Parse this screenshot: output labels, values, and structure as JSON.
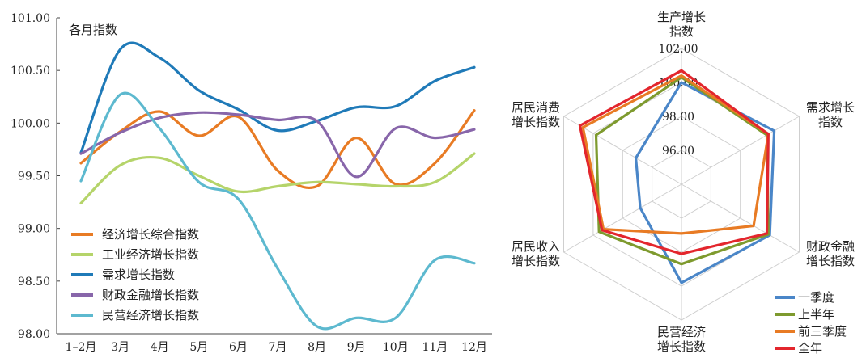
{
  "chart_data": [
    {
      "type": "line",
      "title": "各月指数",
      "categories": [
        "1–2月",
        "3月",
        "4月",
        "5月",
        "6月",
        "7月",
        "8月",
        "9月",
        "10月",
        "11月",
        "12月"
      ],
      "ylim": [
        98.0,
        101.0
      ],
      "yticks": [
        "98.00",
        "98.50",
        "99.00",
        "99.50",
        "100.00",
        "100.50",
        "101.00"
      ],
      "grid": false,
      "legend_position": "bottom-left",
      "series": [
        {
          "name": "经济增长综合指数",
          "color": "#E87B24",
          "values": [
            99.62,
            99.92,
            100.11,
            99.88,
            100.06,
            99.55,
            99.4,
            99.86,
            99.42,
            99.62,
            100.12
          ]
        },
        {
          "name": "工业经济增长指数",
          "color": "#B5D46A",
          "values": [
            99.24,
            99.6,
            99.67,
            99.5,
            99.35,
            99.4,
            99.44,
            99.42,
            99.4,
            99.44,
            99.71
          ]
        },
        {
          "name": "需求增长指数",
          "color": "#1F7AB8",
          "values": [
            99.72,
            100.7,
            100.62,
            100.31,
            100.13,
            99.93,
            100.02,
            100.15,
            100.16,
            100.4,
            100.53
          ]
        },
        {
          "name": "财政金融增长指数",
          "color": "#8866AA",
          "values": [
            99.71,
            99.91,
            100.05,
            100.1,
            100.08,
            100.03,
            100.02,
            99.49,
            99.95,
            99.86,
            99.94
          ]
        },
        {
          "name": "民营经济增长指数",
          "color": "#5DB9CF",
          "values": [
            99.45,
            100.27,
            99.95,
            99.44,
            99.28,
            98.62,
            98.07,
            98.15,
            98.15,
            98.7,
            98.67
          ]
        }
      ]
    },
    {
      "type": "radar",
      "axes": [
        "生产增长\n指数",
        "需求增长\n指数",
        "财政金融\n增长指数",
        "民营经济\n增长指数",
        "居民收入\n增长指数",
        "居民消费\n增长指数"
      ],
      "ticks": [
        "96.00",
        "98.00",
        "100.00",
        "102.00"
      ],
      "rlim": [
        94.0,
        102.0
      ],
      "legend_position": "bottom-right",
      "series": [
        {
          "name": "一季度",
          "color": "#4A86C8",
          "values": [
            100.0,
            100.3,
            100.0,
            99.8,
            96.8,
            97.1
          ]
        },
        {
          "name": "上半年",
          "color": "#7E9A2E",
          "values": [
            100.3,
            99.8,
            99.9,
            98.7,
            99.6,
            99.8
          ]
        },
        {
          "name": "前三季度",
          "color": "#E87B24",
          "values": [
            100.4,
            99.9,
            98.9,
            96.9,
            99.3,
            100.7
          ]
        },
        {
          "name": "全年",
          "color": "#E3262D",
          "values": [
            100.7,
            99.9,
            99.8,
            98.1,
            99.4,
            100.9
          ]
        }
      ]
    }
  ]
}
